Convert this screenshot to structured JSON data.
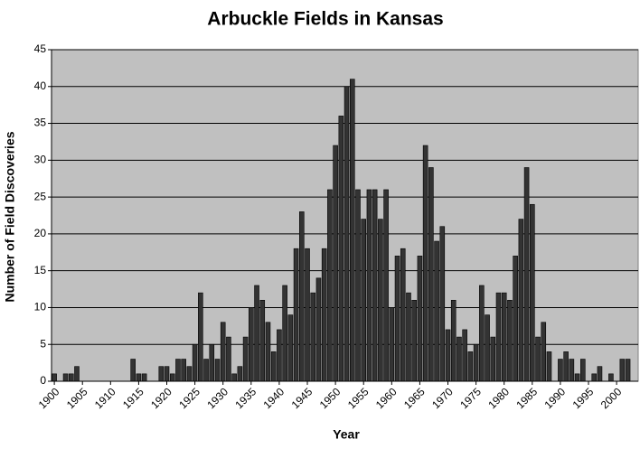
{
  "chart_data": {
    "type": "bar",
    "title": "Arbuckle Fields in Kansas",
    "x_label": "Year",
    "y_label": "Number of Field Discoveries",
    "x": [
      1900,
      1901,
      1902,
      1903,
      1904,
      1905,
      1906,
      1907,
      1908,
      1909,
      1910,
      1911,
      1912,
      1913,
      1914,
      1915,
      1916,
      1917,
      1918,
      1919,
      1920,
      1921,
      1922,
      1923,
      1924,
      1925,
      1926,
      1927,
      1928,
      1929,
      1930,
      1931,
      1932,
      1933,
      1934,
      1935,
      1936,
      1937,
      1938,
      1939,
      1940,
      1941,
      1942,
      1943,
      1944,
      1945,
      1946,
      1947,
      1948,
      1949,
      1950,
      1951,
      1952,
      1953,
      1954,
      1955,
      1956,
      1957,
      1958,
      1959,
      1960,
      1961,
      1962,
      1963,
      1964,
      1965,
      1966,
      1967,
      1968,
      1969,
      1970,
      1971,
      1972,
      1973,
      1974,
      1975,
      1976,
      1977,
      1978,
      1979,
      1980,
      1981,
      1982,
      1983,
      1984,
      1985,
      1986,
      1987,
      1988,
      1989,
      1990,
      1991,
      1992,
      1993,
      1994,
      1995,
      1996,
      1997,
      1998,
      1999,
      2000,
      2001,
      2002
    ],
    "values": [
      1,
      0,
      1,
      1,
      2,
      0,
      0,
      0,
      0,
      0,
      0,
      0,
      0,
      0,
      3,
      1,
      1,
      0,
      0,
      2,
      2,
      1,
      3,
      3,
      2,
      5,
      12,
      3,
      5,
      3,
      8,
      6,
      1,
      2,
      6,
      10,
      13,
      11,
      8,
      4,
      7,
      13,
      9,
      18,
      23,
      18,
      12,
      14,
      18,
      26,
      32,
      36,
      40,
      41,
      26,
      22,
      26,
      26,
      22,
      26,
      10,
      17,
      18,
      12,
      11,
      17,
      32,
      29,
      19,
      21,
      7,
      11,
      6,
      7,
      4,
      5,
      13,
      9,
      6,
      12,
      12,
      11,
      17,
      22,
      29,
      24,
      6,
      8,
      4,
      0,
      3,
      4,
      3,
      1,
      3,
      0,
      1,
      2,
      0,
      1,
      0,
      3,
      3
    ],
    "color": "#333333",
    "background": "#c0c0c0",
    "grid": true,
    "xlim": [
      1899.5,
      2004
    ],
    "xticks": [
      1900,
      1905,
      1910,
      1915,
      1920,
      1925,
      1930,
      1935,
      1940,
      1945,
      1950,
      1955,
      1960,
      1965,
      1970,
      1975,
      1980,
      1985,
      1990,
      1995,
      2000
    ],
    "ylim": [
      0,
      45
    ],
    "yticks": [
      0,
      5,
      10,
      15,
      20,
      25,
      30,
      35,
      40,
      45
    ]
  }
}
